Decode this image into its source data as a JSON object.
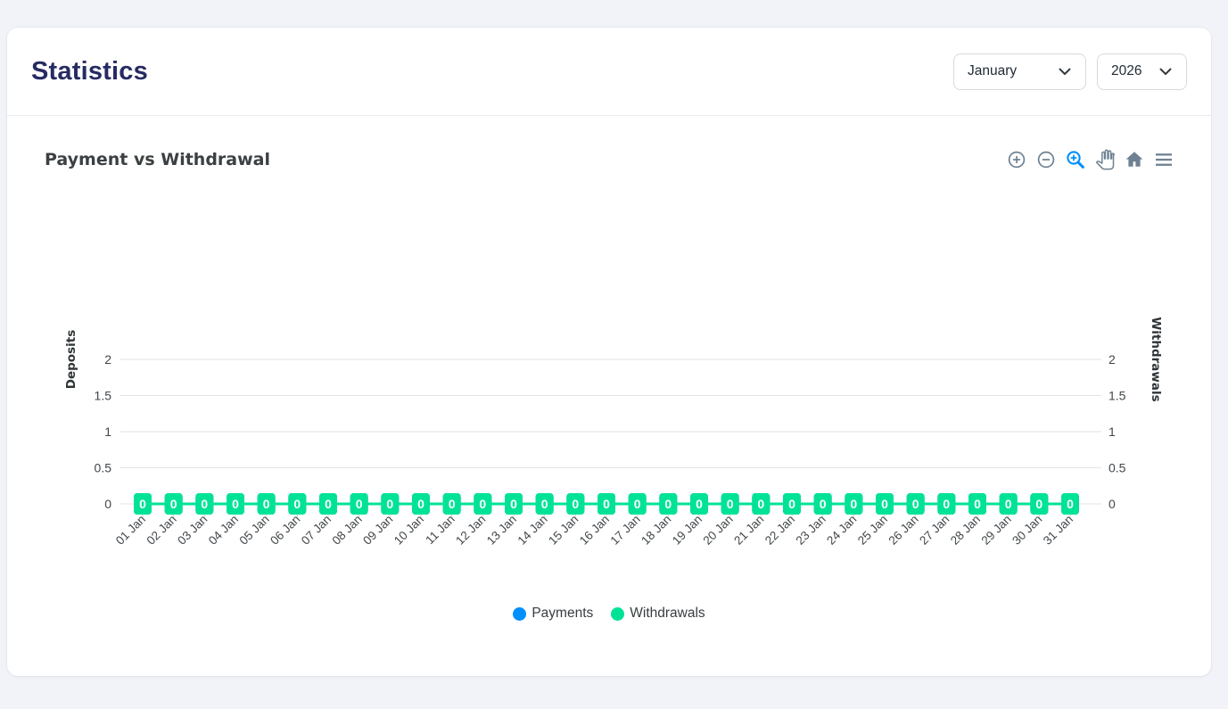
{
  "header": {
    "title": "Statistics",
    "month_select": {
      "value": "January"
    },
    "year_select": {
      "value": "2026"
    }
  },
  "chart_toolbar": {
    "icons": [
      "zoom-in",
      "zoom-out",
      "selection-zoom",
      "pan",
      "home",
      "menu"
    ],
    "active_icon": "selection-zoom",
    "icon_color": "#6E8192",
    "active_color": "#008FFB"
  },
  "chart_data": {
    "type": "line",
    "title": "Payment vs Withdrawal",
    "categories": [
      "01 Jan",
      "02 Jan",
      "03 Jan",
      "04 Jan",
      "05 Jan",
      "06 Jan",
      "07 Jan",
      "08 Jan",
      "09 Jan",
      "10 Jan",
      "11 Jan",
      "12 Jan",
      "13 Jan",
      "14 Jan",
      "15 Jan",
      "16 Jan",
      "17 Jan",
      "18 Jan",
      "19 Jan",
      "20 Jan",
      "21 Jan",
      "22 Jan",
      "23 Jan",
      "24 Jan",
      "25 Jan",
      "26 Jan",
      "27 Jan",
      "28 Jan",
      "29 Jan",
      "30 Jan",
      "31 Jan"
    ],
    "series": [
      {
        "name": "Payments",
        "color": "#008FFB",
        "values": [
          0,
          0,
          0,
          0,
          0,
          0,
          0,
          0,
          0,
          0,
          0,
          0,
          0,
          0,
          0,
          0,
          0,
          0,
          0,
          0,
          0,
          0,
          0,
          0,
          0,
          0,
          0,
          0,
          0,
          0,
          0
        ]
      },
      {
        "name": "Withdrawals",
        "color": "#00E396",
        "values": [
          0,
          0,
          0,
          0,
          0,
          0,
          0,
          0,
          0,
          0,
          0,
          0,
          0,
          0,
          0,
          0,
          0,
          0,
          0,
          0,
          0,
          0,
          0,
          0,
          0,
          0,
          0,
          0,
          0,
          0,
          0
        ]
      }
    ],
    "yaxis_left": {
      "title": "Deposits",
      "ticks": [
        "0",
        "0.5",
        "1",
        "1.5",
        "2"
      ],
      "range": [
        0,
        2
      ]
    },
    "yaxis_right": {
      "title": "Withdrawals",
      "ticks": [
        "0",
        "0.5",
        "1",
        "1.5",
        "2"
      ],
      "range": [
        0,
        2
      ]
    },
    "xaxis_label_rotation": -45,
    "grid": true,
    "data_labels": true,
    "legend": {
      "position": "bottom"
    },
    "colors": {
      "gridline": "#e3e3e3",
      "tick_label": "#42474a",
      "axis_title": "#2f3437",
      "data_label_text": "#ffffff"
    }
  }
}
